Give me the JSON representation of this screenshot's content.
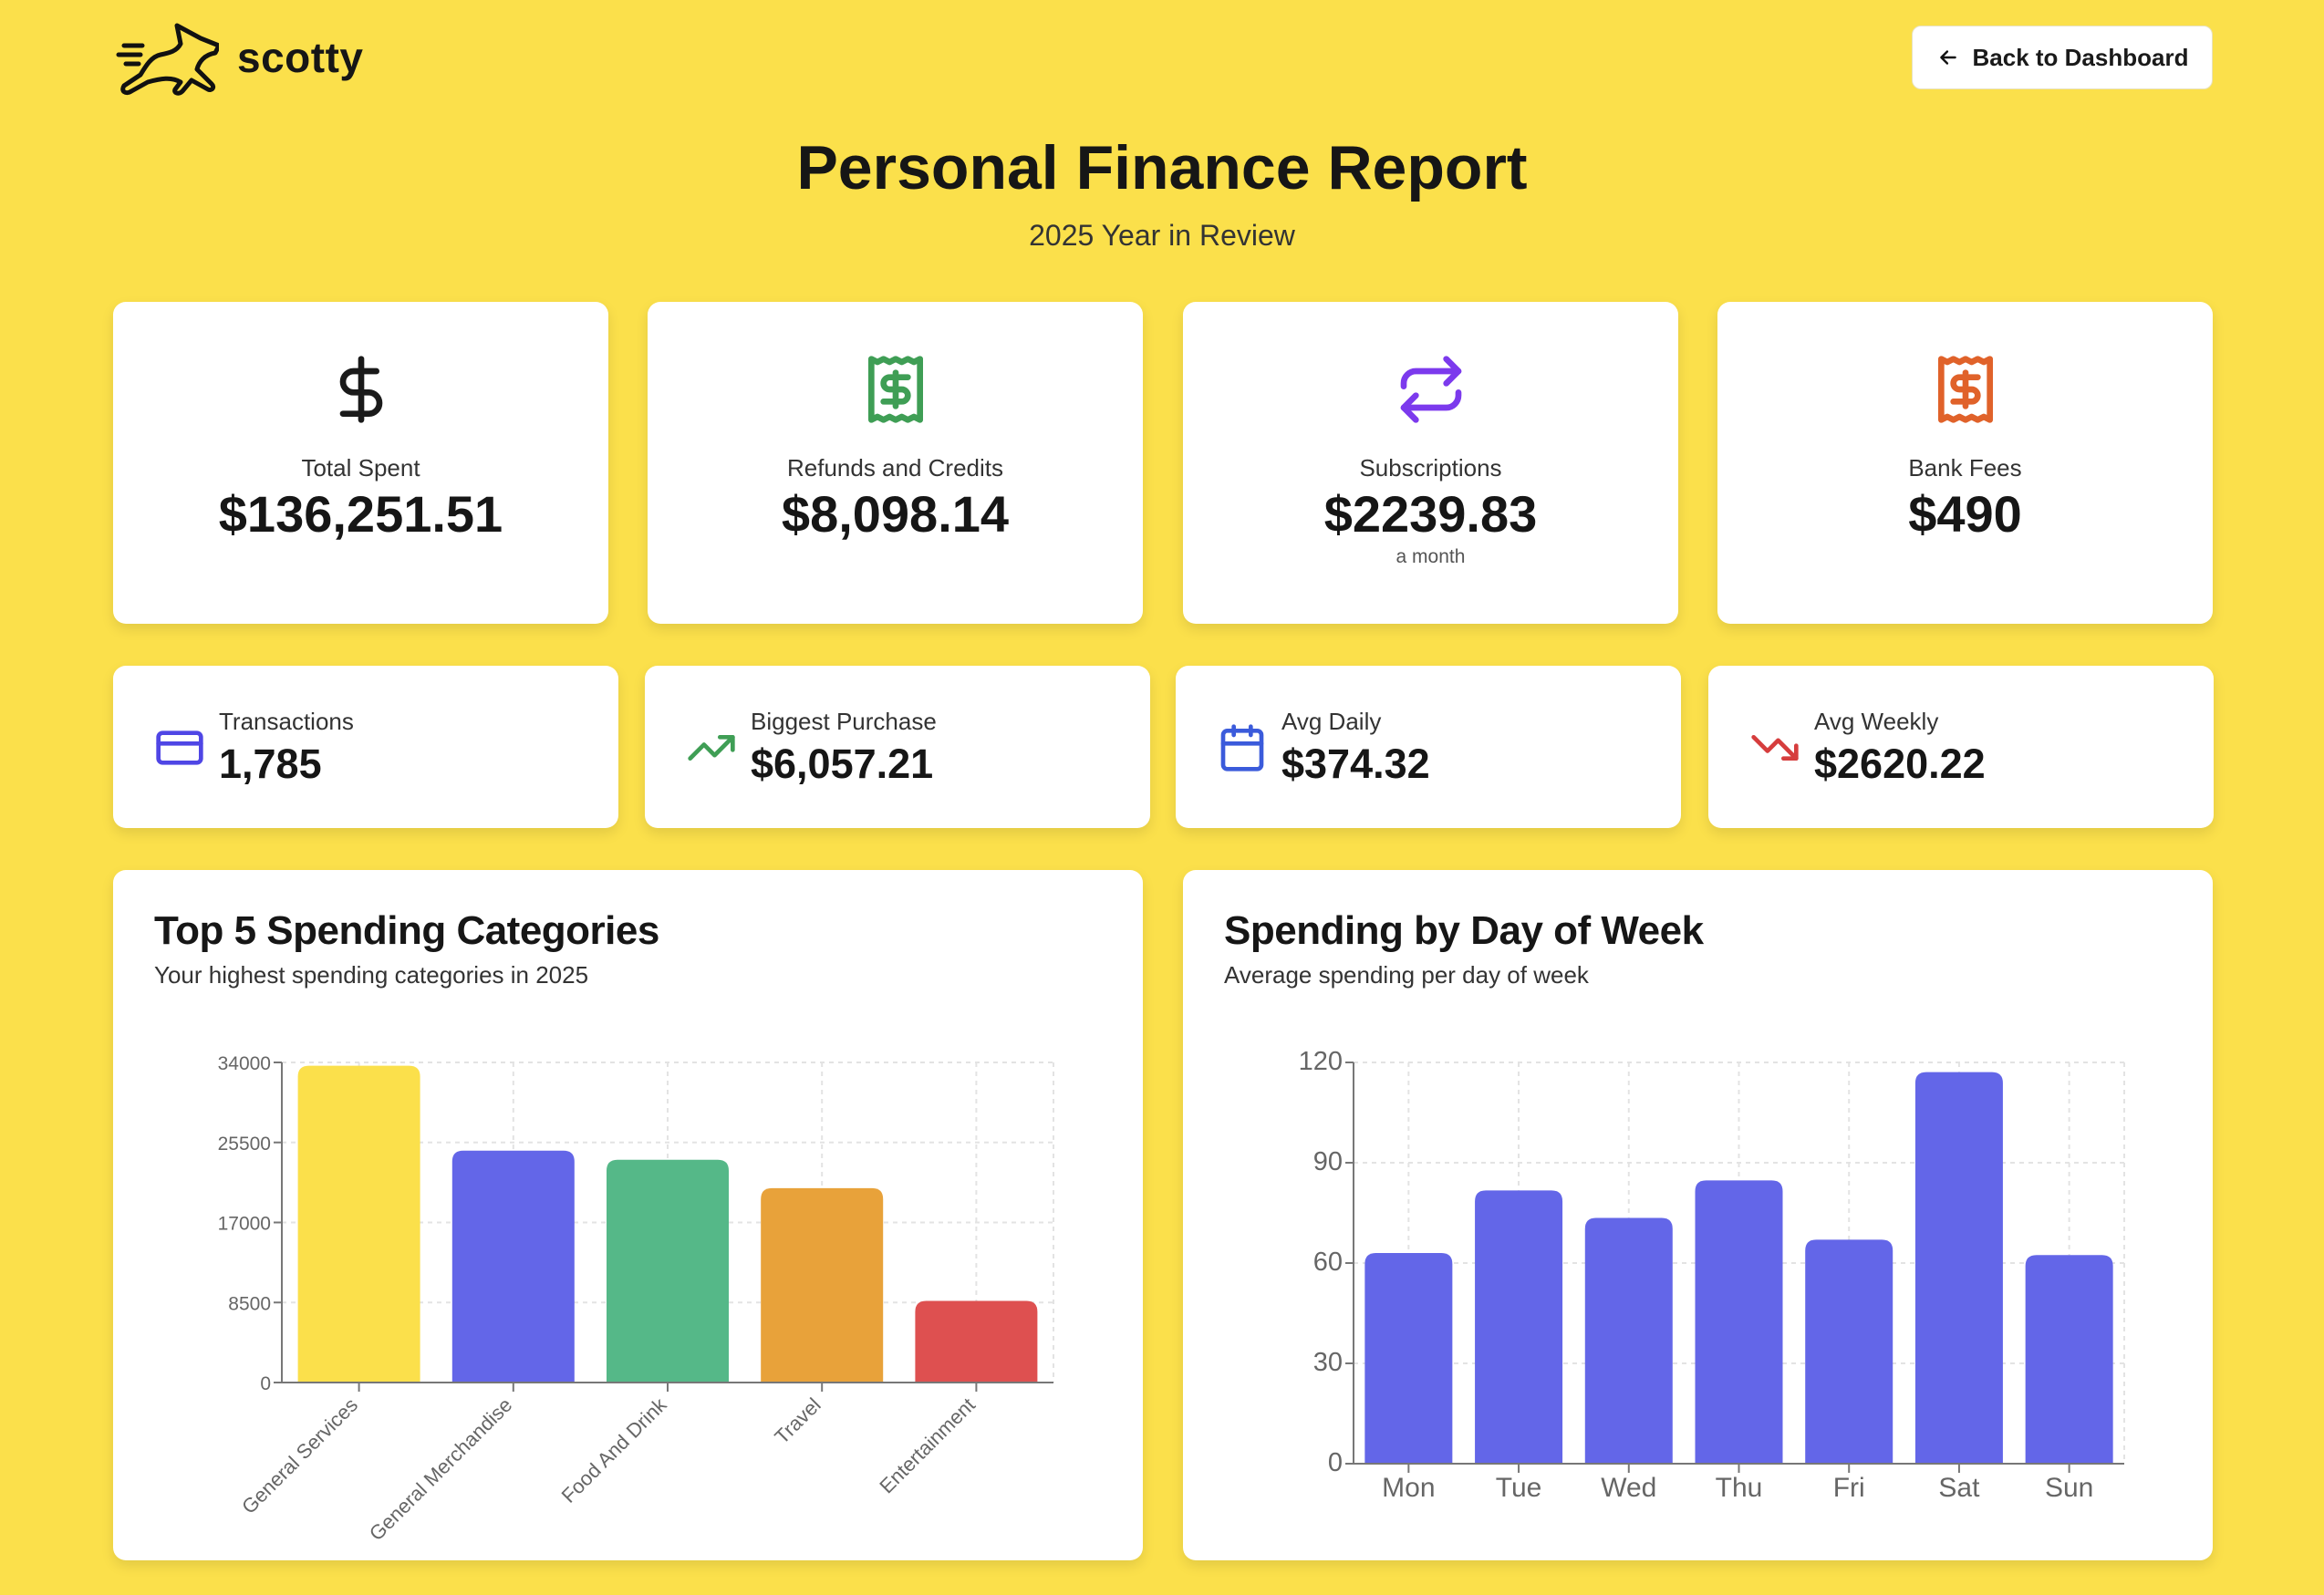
{
  "header": {
    "brand": "scotty",
    "back_label": "Back to Dashboard"
  },
  "page": {
    "title": "Personal Finance Report",
    "subtitle": "2025 Year in Review"
  },
  "stats": [
    {
      "icon": "dollar-icon",
      "label": "Total Spent",
      "value": "$136,251.51",
      "color": "#1a1a1a"
    },
    {
      "icon": "receipt-icon",
      "label": "Refunds and Credits",
      "value": "$8,098.14",
      "color": "#3f9e55"
    },
    {
      "icon": "repeat-icon",
      "label": "Subscriptions",
      "value": "$2239.83",
      "note": "a month",
      "color": "#7c3aed"
    },
    {
      "icon": "receipt-icon",
      "label": "Bank Fees",
      "value": "$490",
      "color": "#e0622a"
    }
  ],
  "metrics": [
    {
      "icon": "credit-card-icon",
      "label": "Transactions",
      "value": "1,785",
      "color": "#4f46e5"
    },
    {
      "icon": "trending-up-icon",
      "label": "Biggest Purchase",
      "value": "$6,057.21",
      "color": "#3f9e55"
    },
    {
      "icon": "calendar-icon",
      "label": "Avg Daily",
      "value": "$374.32",
      "color": "#3b5bdb"
    },
    {
      "icon": "trending-down-icon",
      "label": "Avg Weekly",
      "value": "$2620.22",
      "color": "#d63d3d"
    }
  ],
  "chart_data": [
    {
      "type": "bar",
      "title": "Top 5 Spending Categories",
      "subtitle": "Your highest spending categories in 2025",
      "categories": [
        "General Services",
        "General Merchandise",
        "Food And Drink",
        "Travel",
        "Entertainment"
      ],
      "values": [
        33650,
        24630,
        23660,
        20640,
        8670
      ],
      "colors": [
        "#fbe04b",
        "#6366e8",
        "#55b888",
        "#e8a23a",
        "#de5050"
      ],
      "yticks": [
        "0",
        "8500",
        "17000",
        "25500",
        "34000"
      ],
      "ylim": [
        0,
        34000
      ],
      "grid": true
    },
    {
      "type": "bar",
      "title": "Spending by Day of Week",
      "subtitle": "Average spending per day of week",
      "categories": [
        "Mon",
        "Tue",
        "Wed",
        "Thu",
        "Fri",
        "Sat",
        "Sun"
      ],
      "values": [
        63.0,
        81.7,
        73.5,
        84.7,
        67.0,
        117.1,
        62.4
      ],
      "colors": [
        "#6366e8"
      ],
      "yticks": [
        "0",
        "30",
        "60",
        "90",
        "120"
      ],
      "ylim": [
        0,
        120
      ],
      "grid": true
    }
  ]
}
